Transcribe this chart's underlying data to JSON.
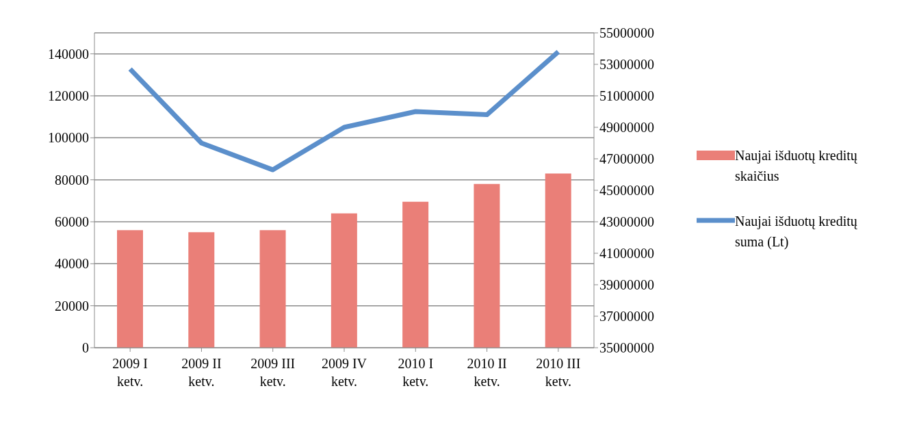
{
  "chart_data": {
    "type": "bar",
    "categories": [
      "2009 I ketv.",
      "2009 II ketv.",
      "2009 III ketv.",
      "2009 IV ketv.",
      "2010 I ketv.",
      "2010 II ketv.",
      "2010 III ketv."
    ],
    "series": [
      {
        "name": "Naujai išduotų kreditų skaičius",
        "color": "#ea7f78",
        "values": [
          56000,
          55000,
          56000,
          64000,
          69500,
          78000,
          83000
        ]
      },
      {
        "name": "Naujai išduotų kreditų suma (Lt)",
        "type": "line",
        "axis": "y2",
        "color": "#5b8fcb",
        "values": [
          52700000,
          48000000,
          46300000,
          49000000,
          50000000,
          49800000,
          53800000
        ]
      }
    ],
    "ylim": [
      0,
      150000
    ],
    "yticks": [
      0,
      20000,
      40000,
      60000,
      80000,
      100000,
      120000,
      140000
    ],
    "y2lim": [
      35000000,
      55000000
    ],
    "y2ticks": [
      35000000,
      37000000,
      39000000,
      41000000,
      43000000,
      45000000,
      47000000,
      49000000,
      51000000,
      53000000,
      55000000
    ],
    "grid": "y",
    "legend": "right",
    "marker": "none",
    "line_style": "solid"
  }
}
